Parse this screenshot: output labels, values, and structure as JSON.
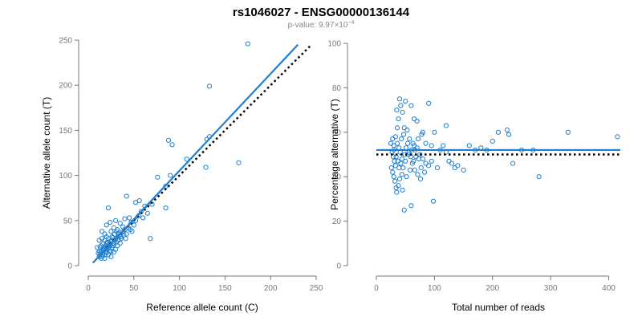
{
  "header": {
    "title": "rs1046027 - ENSG00000136144",
    "pvalue_prefix": "p-value: 9.97",
    "pvalue_times": "×10",
    "pvalue_exp": "−4"
  },
  "colors": {
    "points": "#1f7fd0",
    "fit_line": "#1f7fd0",
    "reference_line": "#000000",
    "axis": "#777777"
  },
  "chart_data": [
    {
      "type": "scatter",
      "xlabel": "Reference allele count (C)",
      "ylabel": "Alternative allele count (T)",
      "xlim": [
        0,
        250
      ],
      "ylim": [
        0,
        250
      ],
      "xticks": [
        0,
        50,
        100,
        150,
        200,
        250
      ],
      "yticks": [
        0,
        50,
        100,
        150,
        200,
        250
      ],
      "points": [
        [
          175,
          246
        ],
        [
          133,
          199
        ],
        [
          88,
          139
        ],
        [
          92,
          134
        ],
        [
          130,
          140
        ],
        [
          133,
          143
        ],
        [
          165,
          114
        ],
        [
          129,
          109
        ],
        [
          108,
          118
        ],
        [
          90,
          100
        ],
        [
          76,
          98
        ],
        [
          85,
          88
        ],
        [
          85,
          64
        ],
        [
          70,
          68
        ],
        [
          68,
          30
        ],
        [
          42,
          77
        ],
        [
          56,
          72
        ],
        [
          52,
          70
        ],
        [
          62,
          66
        ],
        [
          58,
          60
        ],
        [
          60,
          53
        ],
        [
          45,
          53
        ],
        [
          47,
          48
        ],
        [
          52,
          50
        ],
        [
          50,
          45
        ],
        [
          40,
          52
        ],
        [
          38,
          43
        ],
        [
          35,
          47
        ],
        [
          32,
          40
        ],
        [
          40,
          40
        ],
        [
          42,
          35
        ],
        [
          48,
          38
        ],
        [
          30,
          50
        ],
        [
          33,
          35
        ],
        [
          36,
          30
        ],
        [
          28,
          42
        ],
        [
          25,
          38
        ],
        [
          22,
          64
        ],
        [
          30,
          30
        ],
        [
          26,
          32
        ],
        [
          28,
          25
        ],
        [
          32,
          22
        ],
        [
          35,
          25
        ],
        [
          30,
          18
        ],
        [
          24,
          48
        ],
        [
          20,
          45
        ],
        [
          18,
          35
        ],
        [
          22,
          30
        ],
        [
          20,
          25
        ],
        [
          18,
          28
        ],
        [
          16,
          24
        ],
        [
          24,
          22
        ],
        [
          26,
          20
        ],
        [
          28,
          15
        ],
        [
          20,
          18
        ],
        [
          16,
          18
        ],
        [
          14,
          22
        ],
        [
          14,
          15
        ],
        [
          18,
          12
        ],
        [
          22,
          12
        ],
        [
          25,
          10
        ],
        [
          15,
          30
        ],
        [
          12,
          28
        ],
        [
          13,
          20
        ],
        [
          15,
          10
        ],
        [
          18,
          8
        ],
        [
          20,
          14
        ],
        [
          12,
          16
        ],
        [
          17,
          20
        ],
        [
          19,
          22
        ],
        [
          21,
          26
        ],
        [
          23,
          16
        ],
        [
          24,
          27
        ],
        [
          13,
          13
        ],
        [
          16,
          14
        ],
        [
          19,
          16
        ],
        [
          22,
          20
        ],
        [
          25,
          16
        ],
        [
          27,
          22
        ],
        [
          29,
          28
        ],
        [
          31,
          26
        ],
        [
          34,
          33
        ],
        [
          37,
          37
        ],
        [
          10,
          20
        ],
        [
          11,
          14
        ],
        [
          12,
          10
        ],
        [
          14,
          8
        ],
        [
          16,
          12
        ],
        [
          17,
          17
        ],
        [
          18,
          19
        ],
        [
          21,
          21
        ],
        [
          23,
          24
        ],
        [
          26,
          28
        ],
        [
          27,
          31
        ],
        [
          29,
          35
        ],
        [
          31,
          38
        ],
        [
          33,
          28
        ],
        [
          36,
          32
        ],
        [
          39,
          34
        ],
        [
          41,
          30
        ],
        [
          44,
          42
        ],
        [
          46,
          40
        ],
        [
          55,
          55
        ],
        [
          65,
          58
        ],
        [
          20,
          32
        ],
        [
          15,
          38
        ]
      ],
      "fit_line": {
        "x": [
          5,
          230
        ],
        "y": [
          3,
          245
        ]
      },
      "reference_line": {
        "x": [
          20,
          245
        ],
        "y": [
          20,
          245
        ]
      },
      "grid": false,
      "legend": "none"
    },
    {
      "type": "scatter",
      "xlabel": "Total number of reads",
      "ylabel": "Percentage alternative (T)",
      "xlim": [
        0,
        420
      ],
      "ylim": [
        0,
        100
      ],
      "xticks": [
        0,
        100,
        200,
        300,
        400
      ],
      "yticks": [
        0,
        20,
        40,
        60,
        80,
        100
      ],
      "points": [
        [
          40,
          75
        ],
        [
          42,
          72
        ],
        [
          50,
          74
        ],
        [
          45,
          69
        ],
        [
          35,
          70
        ],
        [
          38,
          66
        ],
        [
          60,
          72
        ],
        [
          65,
          66
        ],
        [
          70,
          65
        ],
        [
          90,
          73
        ],
        [
          120,
          63
        ],
        [
          80,
          60
        ],
        [
          100,
          60
        ],
        [
          48,
          62
        ],
        [
          36,
          62
        ],
        [
          33,
          58
        ],
        [
          28,
          57
        ],
        [
          30,
          54
        ],
        [
          25,
          55
        ],
        [
          27,
          51
        ],
        [
          29,
          49
        ],
        [
          31,
          47
        ],
        [
          33,
          45
        ],
        [
          26,
          44
        ],
        [
          28,
          42
        ],
        [
          30,
          40
        ],
        [
          32,
          38
        ],
        [
          34,
          35
        ],
        [
          35,
          33
        ],
        [
          38,
          36
        ],
        [
          40,
          39
        ],
        [
          44,
          41
        ],
        [
          46,
          44
        ],
        [
          50,
          47
        ],
        [
          55,
          50
        ],
        [
          60,
          52
        ],
        [
          65,
          54
        ],
        [
          70,
          53
        ],
        [
          75,
          50
        ],
        [
          80,
          48
        ],
        [
          85,
          46
        ],
        [
          90,
          45
        ],
        [
          95,
          47
        ],
        [
          105,
          44
        ],
        [
          110,
          52
        ],
        [
          115,
          54
        ],
        [
          120,
          51
        ],
        [
          125,
          47
        ],
        [
          130,
          46
        ],
        [
          135,
          44
        ],
        [
          140,
          45
        ],
        [
          150,
          43
        ],
        [
          160,
          54
        ],
        [
          170,
          52
        ],
        [
          180,
          53
        ],
        [
          190,
          52
        ],
        [
          200,
          56
        ],
        [
          210,
          60
        ],
        [
          225,
          61
        ],
        [
          228,
          59
        ],
        [
          235,
          46
        ],
        [
          250,
          52
        ],
        [
          270,
          52
        ],
        [
          280,
          40
        ],
        [
          330,
          60
        ],
        [
          415,
          58
        ],
        [
          48,
          25
        ],
        [
          60,
          27
        ],
        [
          98,
          29
        ],
        [
          45,
          34
        ],
        [
          52,
          40
        ],
        [
          58,
          43
        ],
        [
          62,
          46
        ],
        [
          68,
          49
        ],
        [
          72,
          57
        ],
        [
          78,
          59
        ],
        [
          85,
          55
        ],
        [
          95,
          54
        ],
        [
          36,
          55
        ],
        [
          39,
          53
        ],
        [
          41,
          51
        ],
        [
          43,
          57
        ],
        [
          47,
          59
        ],
        [
          53,
          61
        ],
        [
          57,
          57
        ],
        [
          63,
          55
        ],
        [
          67,
          52
        ],
        [
          73,
          48
        ],
        [
          77,
          44
        ],
        [
          83,
          42
        ],
        [
          30,
          52
        ],
        [
          34,
          49
        ],
        [
          37,
          47
        ],
        [
          39,
          44
        ],
        [
          42,
          46
        ],
        [
          44,
          48
        ],
        [
          49,
          50
        ],
        [
          51,
          53
        ],
        [
          54,
          55
        ],
        [
          56,
          51
        ],
        [
          59,
          49
        ],
        [
          64,
          47
        ],
        [
          66,
          43
        ],
        [
          71,
          41
        ],
        [
          76,
          39
        ]
      ],
      "fit_line": {
        "x": [
          0,
          420
        ],
        "y": [
          52,
          52
        ]
      },
      "reference_line": {
        "x": [
          0,
          420
        ],
        "y": [
          50,
          50
        ]
      },
      "grid": false,
      "legend": "none"
    }
  ]
}
